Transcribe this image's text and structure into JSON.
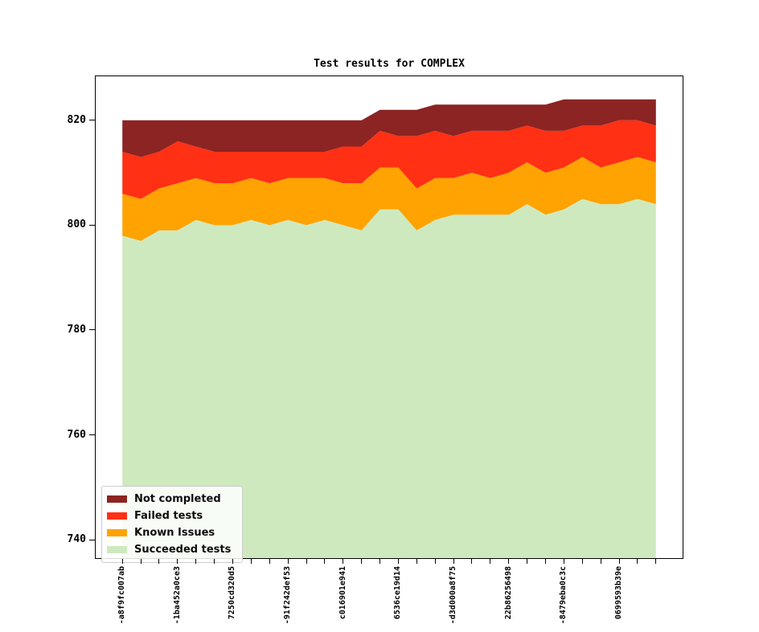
{
  "title": "Test results for COMPLEX",
  "legend": {
    "items": [
      {
        "label": "Not completed",
        "color": "#8b2423"
      },
      {
        "label": "Failed tests",
        "color": "#ff3014"
      },
      {
        "label": "Known Issues",
        "color": "#ffa302"
      },
      {
        "label": "Succeeded tests",
        "color": "#cfe9bf"
      }
    ]
  },
  "y_axis": {
    "ticks": [
      820,
      800,
      780,
      760,
      740
    ]
  },
  "x_axis": {
    "label_every": 3,
    "labels": [
      "-a8f9fc007ab",
      "-1ba452a0ce3",
      "7250cd320d5",
      "-91f242def53",
      "c016901e941",
      "6536ce19d14",
      "-d3d000a8f75",
      "22b86256498",
      "-8479eba0c3c",
      "0699593b39e"
    ]
  },
  "chart_data": {
    "type": "area",
    "stacked": true,
    "title": "Test results for COMPLEX",
    "n_points": 30,
    "xlim": [
      -1.45,
      30.45
    ],
    "ylim": [
      736.5,
      828.4
    ],
    "grid": false,
    "legend_position": "lower left",
    "series": [
      {
        "name": "Succeeded tests",
        "color": "#cfe9bf",
        "values": [
          798,
          797,
          799,
          799,
          801,
          800,
          800,
          801,
          800,
          801,
          800,
          801,
          800,
          799,
          803,
          803,
          799,
          801,
          802,
          802,
          802,
          802,
          804,
          802,
          803,
          805,
          804,
          804,
          805,
          804
        ]
      },
      {
        "name": "Known Issues",
        "color": "#ffa302",
        "values": [
          8,
          8,
          8,
          9,
          8,
          8,
          8,
          8,
          8,
          8,
          9,
          8,
          8,
          9,
          8,
          8,
          8,
          8,
          7,
          8,
          7,
          8,
          8,
          8,
          8,
          8,
          7,
          8,
          8,
          8
        ]
      },
      {
        "name": "Failed tests",
        "color": "#ff3014",
        "values": [
          8,
          8,
          7,
          8,
          6,
          6,
          6,
          5,
          6,
          5,
          5,
          5,
          7,
          7,
          7,
          6,
          10,
          9,
          8,
          8,
          9,
          8,
          7,
          8,
          7,
          6,
          8,
          8,
          7,
          7
        ]
      },
      {
        "name": "Not completed",
        "color": "#8b2423",
        "values": [
          6,
          7,
          6,
          4,
          5,
          6,
          6,
          6,
          6,
          6,
          6,
          6,
          5,
          5,
          4,
          5,
          5,
          5,
          6,
          5,
          5,
          5,
          4,
          5,
          6,
          5,
          5,
          4,
          4,
          5
        ]
      }
    ]
  }
}
